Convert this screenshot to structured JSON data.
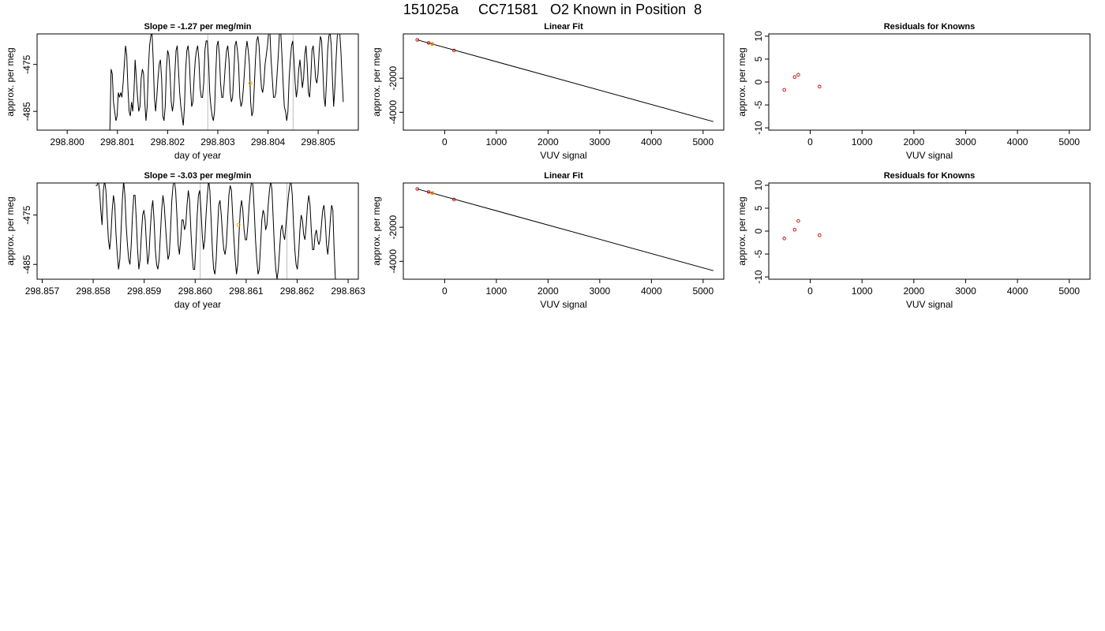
{
  "page_title": "151025a     CC71581   O2 Known in Position  8",
  "colors": {
    "line": "#000000",
    "grid": "#bebebe",
    "highlight": "#ffa500",
    "point": "#cd0000"
  },
  "chart_data": [
    {
      "id": "p1",
      "type": "line",
      "title": "Slope =  -1.27  per meg/min",
      "xlabel": "day of year",
      "ylabel": "approx. per meg",
      "xlim": [
        298.7994,
        298.8058
      ],
      "ylim": [
        -489,
        -468.5
      ],
      "xticks": [
        "298.800",
        "298.801",
        "298.802",
        "298.803",
        "298.804",
        "298.805"
      ],
      "xtick_values": [
        298.8,
        298.801,
        298.802,
        298.803,
        298.804,
        298.805
      ],
      "yticks": [
        "-475",
        "-485"
      ],
      "ytick_values": [
        -475,
        -485
      ],
      "vlines": [
        298.8028,
        298.8045
      ],
      "highlight_point": {
        "x": 298.80365,
        "y": -479
      },
      "x_start": 298.80085,
      "x_end": 298.8055,
      "series": [
        {
          "y": [
            -489,
            -476,
            -477,
            -483,
            -485,
            -487,
            -486,
            -481,
            -482,
            -481,
            -482,
            -479,
            -475,
            -471,
            -473,
            -480,
            -485,
            -486,
            -483,
            -485,
            -481,
            -474,
            -478,
            -482,
            -485,
            -484,
            -478,
            -476,
            -477,
            -483,
            -487,
            -484,
            -476,
            -471,
            -469,
            -468,
            -474,
            -482,
            -485,
            -482,
            -478,
            -475,
            -474,
            -478,
            -486,
            -487,
            -484,
            -476,
            -472,
            -473,
            -477,
            -483,
            -485,
            -483,
            -477,
            -472,
            -471,
            -476,
            -481,
            -484,
            -486,
            -488,
            -484,
            -476,
            -472,
            -471,
            -474,
            -480,
            -484,
            -483,
            -478,
            -474,
            -472,
            -471,
            -474,
            -480,
            -482,
            -482,
            -479,
            -472,
            -470,
            -470,
            -474,
            -481,
            -484,
            -486,
            -487,
            -485,
            -477,
            -471,
            -470,
            -473,
            -479,
            -482,
            -482,
            -479,
            -475,
            -472,
            -471,
            -474,
            -481,
            -483,
            -482,
            -477,
            -471,
            -470,
            -472,
            -475,
            -482,
            -484,
            -483,
            -480,
            -476,
            -472,
            -470,
            -472,
            -475,
            -483,
            -486,
            -485,
            -480,
            -474,
            -470,
            -469,
            -471,
            -476,
            -480,
            -481,
            -479,
            -475,
            -473,
            -471,
            -468,
            -468,
            -474,
            -478,
            -482,
            -482,
            -481,
            -477,
            -473,
            -468,
            -468,
            -473,
            -479,
            -484,
            -485,
            -487,
            -485,
            -478,
            -474,
            -471,
            -470,
            -474,
            -479,
            -482,
            -480,
            -476,
            -474,
            -477,
            -480,
            -478,
            -473,
            -471,
            -475,
            -481,
            -482,
            -478,
            -472,
            -471,
            -474,
            -478,
            -479,
            -477,
            -472,
            -469,
            -470,
            -476,
            -482,
            -484,
            -479,
            -472,
            -469,
            -468,
            -471,
            -478,
            -484,
            -480,
            -474,
            -469,
            -468,
            -468,
            -472,
            -478,
            -483
          ]
        }
      ]
    },
    {
      "id": "p2",
      "type": "scatter",
      "title": "Linear Fit",
      "xlabel": "VUV signal",
      "ylabel": "approx. per meg",
      "xlim": [
        -800,
        5400
      ],
      "ylim": [
        -5050,
        600
      ],
      "xticks": [
        "0",
        "1000",
        "2000",
        "3000",
        "4000",
        "5000"
      ],
      "xtick_values": [
        0,
        1000,
        2000,
        3000,
        4000,
        5000
      ],
      "yticks": [
        "-2000",
        "-4000"
      ],
      "ytick_values": [
        -2000,
        -4000
      ],
      "fit_line": {
        "x1": -530,
        "y1": 250,
        "x2": 5200,
        "y2": -4550
      },
      "points": [
        {
          "x": -530,
          "y": 253
        },
        {
          "x": -310,
          "y": 72
        },
        {
          "x": -240,
          "y": 10
        },
        {
          "x": 180,
          "y": -370
        }
      ],
      "highlight_point": {
        "x": -240,
        "y": 10
      }
    },
    {
      "id": "p3",
      "type": "scatter",
      "title": "Residuals for Knowns",
      "xlabel": "VUV signal",
      "ylabel": "approx. per meg",
      "xlim": [
        -800,
        5400
      ],
      "ylim": [
        -10.5,
        10.5
      ],
      "xticks": [
        "0",
        "1000",
        "2000",
        "3000",
        "4000",
        "5000"
      ],
      "xtick_values": [
        0,
        1000,
        2000,
        3000,
        4000,
        5000
      ],
      "yticks": [
        "-10",
        "-5",
        "0",
        "5",
        "10"
      ],
      "ytick_values": [
        -10,
        -5,
        0,
        5,
        10
      ],
      "points": [
        {
          "x": -500,
          "y": -1.7
        },
        {
          "x": -300,
          "y": 1.1
        },
        {
          "x": -230,
          "y": 1.6
        },
        {
          "x": 180,
          "y": -1.0
        }
      ]
    },
    {
      "id": "p4",
      "type": "line",
      "title": "Slope =  -3.03  per meg/min",
      "xlabel": "day of year",
      "ylabel": "approx. per meg",
      "xlim": [
        298.8569,
        298.8632
      ],
      "ylim": [
        -488,
        -468.5
      ],
      "xticks": [
        "298.857",
        "298.858",
        "298.859",
        "298.860",
        "298.861",
        "298.862",
        "298.863"
      ],
      "xtick_values": [
        298.857,
        298.858,
        298.859,
        298.86,
        298.861,
        298.862,
        298.863
      ],
      "yticks": [
        "-475",
        "-485"
      ],
      "ytick_values": [
        -475,
        -485
      ],
      "vlines": [
        298.8601,
        298.8618
      ],
      "highlight_point": {
        "x": 298.86085,
        "y": -477
      },
      "x_start": 298.85805,
      "x_end": 298.86275,
      "series": [
        {
          "y": [
            -469,
            -469,
            -468,
            -470,
            -474,
            -477,
            -470,
            -468,
            -470,
            -475,
            -480,
            -482,
            -479,
            -474,
            -471,
            -473,
            -479,
            -483,
            -486,
            -484,
            -478,
            -472,
            -468,
            -471,
            -477,
            -481,
            -484,
            -485,
            -481,
            -475,
            -471,
            -471,
            -476,
            -482,
            -486,
            -484,
            -479,
            -475,
            -474,
            -476,
            -481,
            -485,
            -483,
            -478,
            -474,
            -472,
            -476,
            -482,
            -485,
            -486,
            -484,
            -479,
            -474,
            -471,
            -473,
            -477,
            -481,
            -484,
            -483,
            -478,
            -472,
            -469,
            -468,
            -470,
            -475,
            -481,
            -483,
            -480,
            -476,
            -476,
            -478,
            -477,
            -473,
            -470,
            -472,
            -478,
            -483,
            -486,
            -486,
            -481,
            -475,
            -471,
            -470,
            -474,
            -479,
            -482,
            -480,
            -475,
            -471,
            -468,
            -470,
            -476,
            -482,
            -486,
            -487,
            -484,
            -478,
            -473,
            -472,
            -475,
            -479,
            -482,
            -483,
            -481,
            -476,
            -471,
            -469,
            -470,
            -475,
            -480,
            -484,
            -487,
            -485,
            -479,
            -474,
            -472,
            -474,
            -478,
            -480,
            -480,
            -477,
            -473,
            -470,
            -468,
            -469,
            -474,
            -480,
            -484,
            -487,
            -486,
            -481,
            -476,
            -474,
            -475,
            -478,
            -477,
            -473,
            -470,
            -468,
            -470,
            -476,
            -482,
            -486,
            -488,
            -486,
            -482,
            -478,
            -477,
            -479,
            -480,
            -477,
            -474,
            -471,
            -469,
            -468,
            -471,
            -477,
            -482,
            -485,
            -486,
            -483,
            -478,
            -475,
            -476,
            -479,
            -480,
            -477,
            -473,
            -471,
            -473,
            -478,
            -482,
            -482,
            -479,
            -478,
            -480,
            -481,
            -480,
            -477,
            -474,
            -473,
            -476,
            -481,
            -483,
            -480,
            -476,
            -473,
            -474,
            -482,
            -488
          ]
        }
      ]
    },
    {
      "id": "p5",
      "type": "scatter",
      "title": "Linear Fit",
      "xlabel": "VUV signal",
      "ylabel": "approx. per meg",
      "xlim": [
        -800,
        5400
      ],
      "ylim": [
        -5050,
        600
      ],
      "xticks": [
        "0",
        "1000",
        "2000",
        "3000",
        "4000",
        "5000"
      ],
      "xtick_values": [
        0,
        1000,
        2000,
        3000,
        4000,
        5000
      ],
      "yticks": [
        "-2000",
        "-4000"
      ],
      "ytick_values": [
        -2000,
        -4000
      ],
      "fit_line": {
        "x1": -530,
        "y1": 250,
        "x2": 5200,
        "y2": -4550
      },
      "points": [
        {
          "x": -530,
          "y": 253
        },
        {
          "x": -310,
          "y": 72
        },
        {
          "x": -240,
          "y": 10
        },
        {
          "x": 180,
          "y": -370
        }
      ],
      "highlight_point": {
        "x": -240,
        "y": 10
      }
    },
    {
      "id": "p6",
      "type": "scatter",
      "title": "Residuals for Knowns",
      "xlabel": "VUV signal",
      "ylabel": "approx. per meg",
      "xlim": [
        -800,
        5400
      ],
      "ylim": [
        -10.5,
        10.5
      ],
      "xticks": [
        "0",
        "1000",
        "2000",
        "3000",
        "4000",
        "5000"
      ],
      "xtick_values": [
        0,
        1000,
        2000,
        3000,
        4000,
        5000
      ],
      "yticks": [
        "-10",
        "-5",
        "0",
        "5",
        "10"
      ],
      "ytick_values": [
        -10,
        -5,
        0,
        5,
        10
      ],
      "points": [
        {
          "x": -500,
          "y": -1.6
        },
        {
          "x": -300,
          "y": 0.3
        },
        {
          "x": -230,
          "y": 2.2
        },
        {
          "x": 180,
          "y": -0.9
        }
      ]
    }
  ]
}
